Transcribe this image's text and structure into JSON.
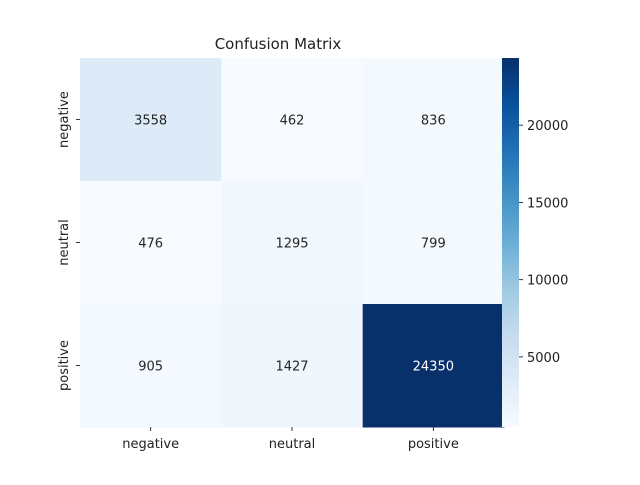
{
  "chart_data": {
    "type": "heatmap",
    "title": "Confusion Matrix",
    "x_categories": [
      "negative",
      "neutral",
      "positive"
    ],
    "y_categories": [
      "negative",
      "neutral",
      "positive"
    ],
    "values": [
      [
        3558,
        462,
        836
      ],
      [
        476,
        1295,
        799
      ],
      [
        905,
        1427,
        24350
      ]
    ],
    "colormap": "Blues",
    "colorbar": {
      "min": 462,
      "max": 24350,
      "ticks": [
        5000,
        10000,
        15000,
        20000
      ],
      "tick_labels": [
        "5000",
        "10000",
        "15000",
        "20000"
      ]
    },
    "colors": {
      "low": "#f7fbff",
      "high": "#08306b",
      "light_text": "#ffffff",
      "dark_text": "#262626"
    }
  }
}
